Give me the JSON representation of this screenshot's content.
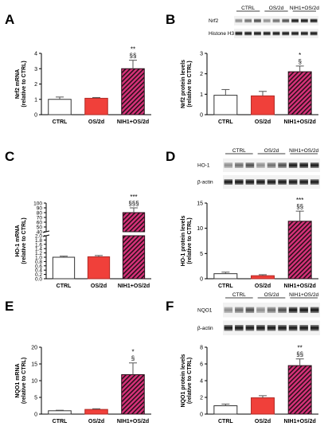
{
  "colors": {
    "ctrl": "#ffffff",
    "os2d": "#f0403a",
    "nih1_fill": "#d8327a",
    "nih1_stripe": "#2a0f1a",
    "axis": "#000000"
  },
  "chart_data": [
    {
      "id": "A",
      "panel_label": "A",
      "type": "bar",
      "categories": [
        "CTRL",
        "OS/2d",
        "NIH1+OS/2d"
      ],
      "values": [
        1.0,
        1.07,
        3.0
      ],
      "errors": [
        0.15,
        0.05,
        0.55
      ],
      "ylabel": [
        "Nrf2 mRNA",
        "(relative to CTRL)"
      ],
      "ylim": [
        0,
        4
      ],
      "yticks": [
        "0",
        "1",
        "2",
        "3",
        "4"
      ],
      "annotations": {
        "2": [
          "**",
          "§§"
        ]
      }
    },
    {
      "id": "B",
      "panel_label": "B",
      "type": "bar",
      "categories": [
        "CTRL",
        "OS/2d",
        "NIH1+OS/2d"
      ],
      "values": [
        0.95,
        0.92,
        2.1
      ],
      "errors": [
        0.28,
        0.22,
        0.28
      ],
      "ylabel": [
        "Nrf2 protein levels",
        "(relative to CTRL)"
      ],
      "ylim": [
        0,
        3
      ],
      "yticks": [
        "0",
        "1",
        "2",
        "3"
      ],
      "annotations": {
        "2": [
          "*",
          "§"
        ]
      },
      "blot": {
        "groups": [
          "CTRL",
          "OS/2d",
          "NIH1+OS/2d"
        ],
        "rows": [
          "Nrf2",
          "Histone H3"
        ]
      }
    },
    {
      "id": "C",
      "panel_label": "C",
      "type": "bar",
      "categories": [
        "CTRL",
        "OS/2d",
        "NIH1+OS/2d"
      ],
      "values": [
        1.0,
        1.02,
        80
      ],
      "errors": [
        0.05,
        0.06,
        10
      ],
      "ylabel": [
        "HO-1 mRNA",
        "(relative to CTRL)"
      ],
      "yticks_upper": [
        "40",
        "50",
        "60",
        "70",
        "80",
        "90",
        "100"
      ],
      "yticks_lower": [
        "0.0",
        "0.2",
        "0.4",
        "0.6",
        "0.8",
        "1.0",
        "1.2",
        "1.4",
        "1.6",
        "1.8",
        "2.0"
      ],
      "annotations": {
        "2": [
          "***",
          "§§§"
        ]
      }
    },
    {
      "id": "D",
      "panel_label": "D",
      "type": "bar",
      "categories": [
        "CTRL",
        "OS/2d",
        "NIH1+OS/2d"
      ],
      "values": [
        1.0,
        0.6,
        11.4
      ],
      "errors": [
        0.3,
        0.2,
        2.0
      ],
      "ylabel": [
        "HO-1 protein levels",
        "(relative to CTRL)"
      ],
      "ylim": [
        0,
        15
      ],
      "yticks": [
        "0",
        "5",
        "10",
        "15"
      ],
      "annotations": {
        "2": [
          "***",
          "§§"
        ]
      },
      "blot": {
        "groups": [
          "CTRL",
          "OS/2d",
          "NIH1+OS/2d"
        ],
        "rows": [
          "HO-1",
          "β-actin"
        ]
      }
    },
    {
      "id": "E",
      "panel_label": "E",
      "type": "bar",
      "categories": [
        "CTRL",
        "OS/2d",
        "NIH1+OS/2d"
      ],
      "values": [
        1.0,
        1.4,
        11.8
      ],
      "errors": [
        0.15,
        0.2,
        3.5
      ],
      "ylabel": [
        "NQO1 mRNA",
        "(relative to CTRL)"
      ],
      "ylim": [
        0,
        20
      ],
      "yticks": [
        "0",
        "5",
        "10",
        "15",
        "20"
      ],
      "annotations": {
        "2": [
          "*",
          "§"
        ]
      }
    },
    {
      "id": "F",
      "panel_label": "F",
      "type": "bar",
      "categories": [
        "CTRL",
        "OS/2d",
        "NIH1+OS/2d"
      ],
      "values": [
        1.0,
        1.95,
        5.8
      ],
      "errors": [
        0.2,
        0.25,
        0.8
      ],
      "ylabel": [
        "NQO1 protein levels",
        "(relative to CTRL)"
      ],
      "ylim": [
        0,
        8
      ],
      "yticks": [
        "0",
        "2",
        "4",
        "6",
        "8"
      ],
      "annotations": {
        "2": [
          "**",
          "§§"
        ]
      },
      "blot": {
        "groups": [
          "CTRL",
          "OS/2d",
          "NIH1+OS/2d"
        ],
        "rows": [
          "NQO1",
          "β-actin"
        ]
      }
    }
  ]
}
